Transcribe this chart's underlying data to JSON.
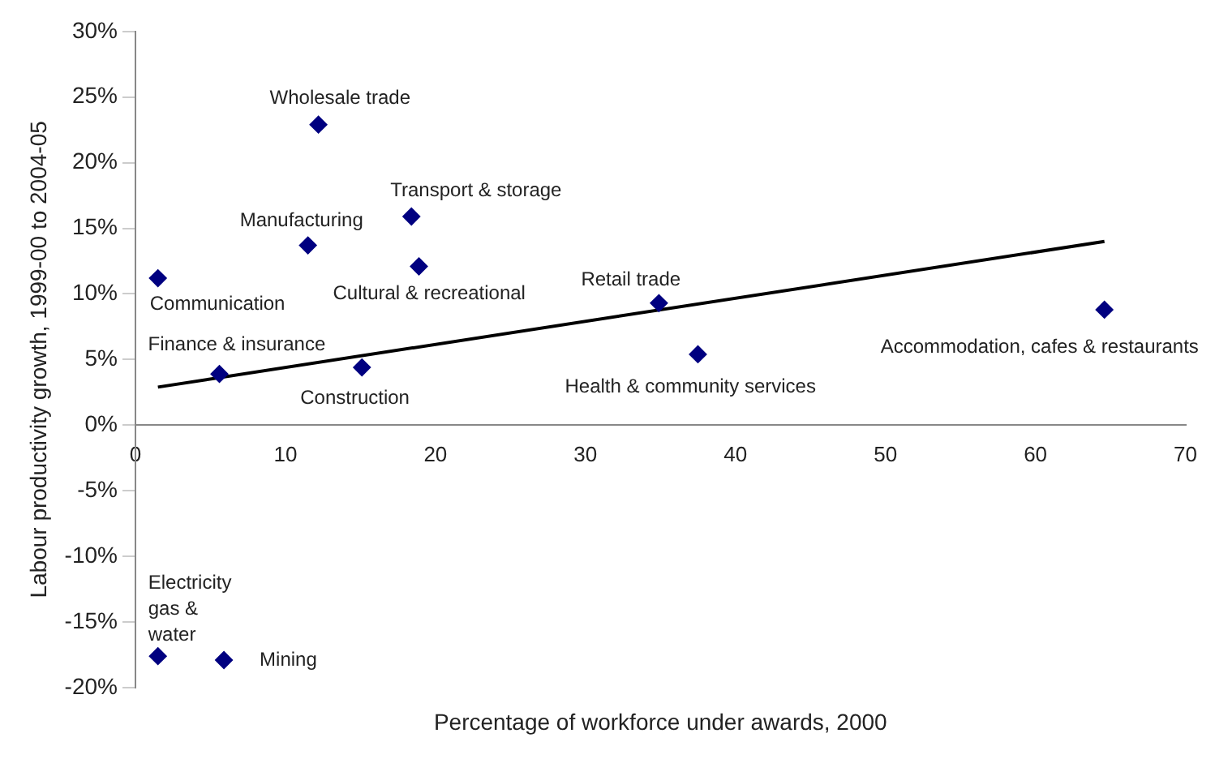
{
  "chart_data": {
    "type": "scatter",
    "xlabel": "Percentage of workforce under awards, 2000",
    "ylabel": "Labour productivity growth, 1999-00 to 2004-05",
    "series": [
      {
        "color": "#000080",
        "x": [
          12.2,
          18.4,
          11.5,
          18.9,
          1.5,
          34.9,
          64.6,
          37.5,
          15.1,
          5.6,
          1.5,
          5.9
        ],
        "values": [
          22.9,
          15.9,
          13.7,
          12.1,
          11.2,
          9.3,
          8.8,
          5.4,
          4.4,
          3.9,
          -17.6,
          -17.9
        ],
        "marker": "diamond"
      },
      {
        "type": "line",
        "color": "#000000",
        "x": [
          1.5,
          64.6
        ],
        "values": [
          2.9,
          14.0
        ],
        "marker": "none",
        "line_style": "solid"
      }
    ],
    "annotations": [
      {
        "text": "Wholesale trade",
        "x": 12.2,
        "y": 22.9
      },
      {
        "text": "Transport & storage",
        "x": 18.4,
        "y": 15.9
      },
      {
        "text": "Manufacturing",
        "x": 11.5,
        "y": 13.7
      },
      {
        "text": "Cultural & recreational",
        "x": 18.9,
        "y": 12.1
      },
      {
        "text": "Communication",
        "x": 1.5,
        "y": 11.2
      },
      {
        "text": "Retail trade",
        "x": 34.9,
        "y": 9.3
      },
      {
        "text": "Accommodation, cafes & restaurants",
        "x": 64.6,
        "y": 8.8
      },
      {
        "text": "Health & community services",
        "x": 37.5,
        "y": 5.4
      },
      {
        "text": "Construction",
        "x": 15.1,
        "y": 4.4
      },
      {
        "text": "Finance & insurance",
        "x": 5.6,
        "y": 3.9
      },
      {
        "text": "Electricity gas & water",
        "x": 1.5,
        "y": -17.6
      },
      {
        "text": "Mining",
        "x": 5.9,
        "y": -17.9
      }
    ],
    "xlim": [
      0,
      70
    ],
    "xticks": [
      0,
      10,
      20,
      30,
      40,
      50,
      60,
      70
    ],
    "ylim": [
      -20,
      30
    ],
    "yticks": [
      {
        "value": -20,
        "label": "-20%"
      },
      {
        "value": -15,
        "label": "-15%"
      },
      {
        "value": -10,
        "label": "-10%"
      },
      {
        "value": -5,
        "label": "-5%"
      },
      {
        "value": 0,
        "label": "0%"
      },
      {
        "value": 5,
        "label": "5%"
      },
      {
        "value": 10,
        "label": "10%"
      },
      {
        "value": 15,
        "label": "15%"
      },
      {
        "value": 20,
        "label": "20%"
      },
      {
        "value": 25,
        "label": "25%"
      },
      {
        "value": 30,
        "label": "30%"
      }
    ],
    "grid": false,
    "legend": false
  }
}
